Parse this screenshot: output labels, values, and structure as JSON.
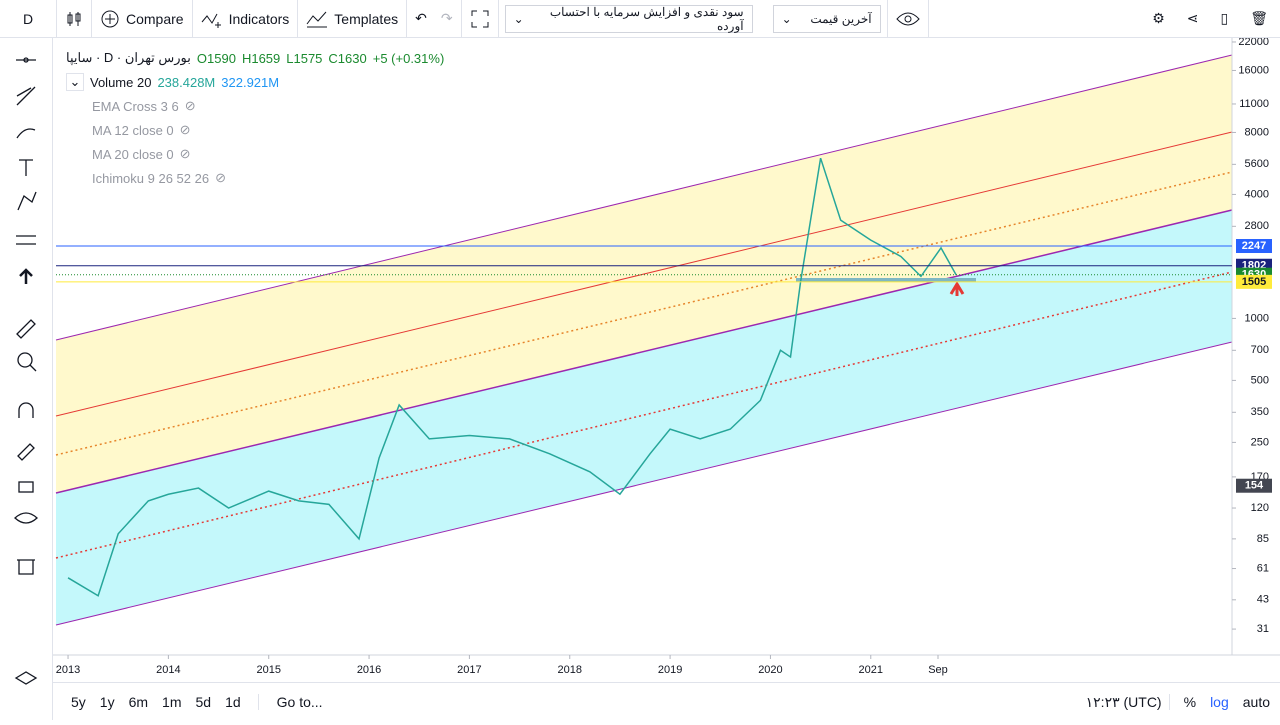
{
  "toolbar": {
    "interval": "D",
    "compare": "Compare",
    "indicators": "Indicators",
    "templates": "Templates",
    "adjustment": "سود نقدی و افزایش سرمایه با احتساب آورده",
    "price_type": "آخرین قیمت"
  },
  "legend": {
    "symbol": "سایپا · D · بورس تهران",
    "open": "O1590",
    "high": "H1659",
    "low": "L1575",
    "close": "C1630",
    "change": "+5 (+0.31%)",
    "volume": "Volume 20",
    "volume_value": "238.428M",
    "volume_avg": "322.921M",
    "studies": [
      "EMA Cross 3 6",
      "MA 12 close 0",
      "MA 20 close 0",
      "Ichimoku 9 26 52 26"
    ]
  },
  "bottom_bar": {
    "ranges": [
      "5y",
      "1y",
      "6m",
      "1m",
      "5d",
      "1d"
    ],
    "goto": "Go to...",
    "time": "۱۲:۲۳ (UTC)",
    "percent": "%",
    "log": "log",
    "auto": "auto"
  },
  "chart_data": {
    "type": "line",
    "log_scale": true,
    "color": "#26a69a",
    "x": [
      2013.0,
      2013.3,
      2013.5,
      2013.8,
      2014.0,
      2014.3,
      2014.6,
      2015.0,
      2015.3,
      2015.6,
      2015.9,
      2016.1,
      2016.3,
      2016.6,
      2017.0,
      2017.4,
      2017.8,
      2018.2,
      2018.5,
      2018.8,
      2019.0,
      2019.3,
      2019.6,
      2019.9,
      2020.1,
      2020.2,
      2020.3,
      2020.5,
      2020.7,
      2021.0,
      2021.3,
      2021.5,
      2021.7,
      2021.85
    ],
    "values": [
      55,
      45,
      90,
      130,
      140,
      150,
      120,
      145,
      130,
      125,
      85,
      210,
      380,
      260,
      270,
      260,
      220,
      180,
      140,
      220,
      290,
      260,
      290,
      400,
      700,
      650,
      1500,
      6000,
      3000,
      2400,
      2000,
      1600,
      2200,
      1630
    ],
    "xlim": [
      2012.88,
      2024.6
    ],
    "xticks": [
      2013,
      2014,
      2015,
      2016,
      2017,
      2018,
      2019,
      2020,
      2021,
      {
        "value": 2021.67,
        "label": "Sep"
      }
    ],
    "ylim": [
      23.2,
      23000
    ],
    "yticks": [
      22000,
      16000,
      11000,
      8000,
      5600,
      4000,
      2800,
      1000,
      700,
      500,
      350,
      250,
      170,
      120,
      85,
      61,
      43,
      31
    ],
    "price_labels": [
      {
        "value": 2247,
        "color": "#2962ff"
      },
      {
        "value": 1802,
        "color": "#1a237e"
      },
      {
        "value": 1630,
        "color": "#1b8a2f"
      },
      {
        "value": 1505,
        "color": "#ffeb3b"
      },
      {
        "value": 154,
        "color": "#434651"
      }
    ]
  }
}
